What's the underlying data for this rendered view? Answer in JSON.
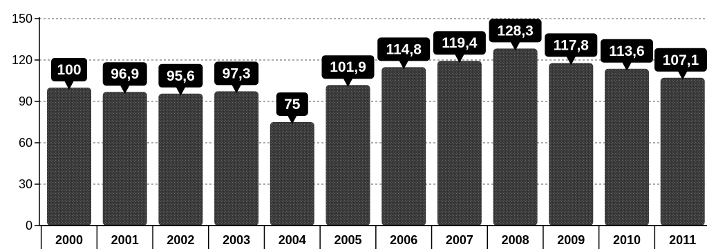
{
  "chart_data": {
    "type": "bar",
    "categories": [
      "2000",
      "2001",
      "2002",
      "2003",
      "2004",
      "2005",
      "2006",
      "2007",
      "2008",
      "2009",
      "2010",
      "2011"
    ],
    "values": [
      100,
      96.9,
      95.6,
      97.3,
      75,
      101.9,
      114.8,
      119.4,
      128.3,
      117.8,
      113.6,
      107.1
    ],
    "data_labels": [
      "100",
      "96,9",
      "95,6",
      "97,3",
      "75",
      "101,9",
      "114,8",
      "119,4",
      "128,3",
      "117,8",
      "113,6",
      "107,1"
    ],
    "y_ticks": [
      "0",
      "30",
      "60",
      "90",
      "120",
      "150"
    ],
    "ylim": [
      0,
      150
    ],
    "grid": true,
    "bar_color": "#3c3c3c",
    "label_box_color": "#000000",
    "title": "",
    "xlabel": "",
    "ylabel": ""
  }
}
